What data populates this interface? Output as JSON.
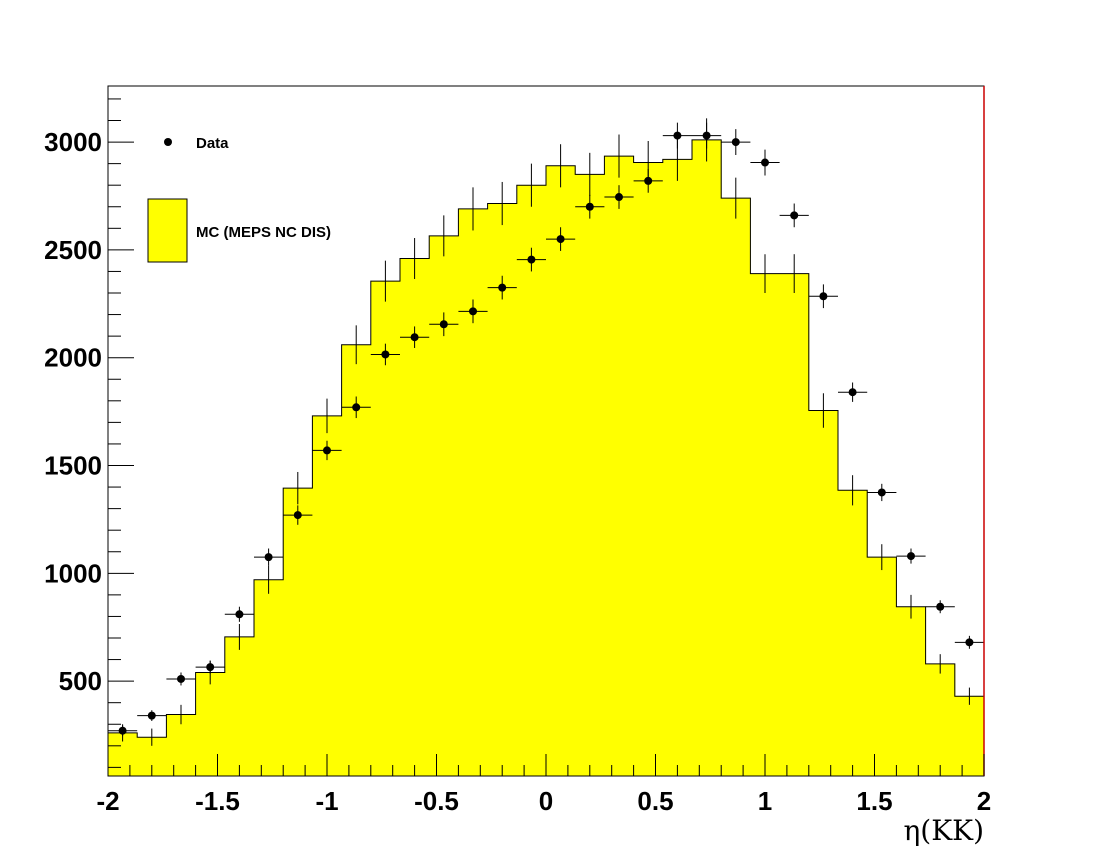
{
  "chart_data": {
    "type": "bar",
    "title": "",
    "xlabel": "η(KK)",
    "ylabel": "",
    "xlim": [
      -2,
      2
    ],
    "ylim": [
      60,
      3260
    ],
    "x_ticks": [
      "-2",
      "-1.5",
      "-1",
      "-0.5",
      "0",
      "0.5",
      "1",
      "1.5",
      "2"
    ],
    "y_ticks": [
      "500",
      "1000",
      "1500",
      "2000",
      "2500",
      "3000"
    ],
    "bin_edges": [
      -2.0,
      -1.8667,
      -1.7333,
      -1.6,
      -1.4667,
      -1.3333,
      -1.2,
      -1.0667,
      -0.9333,
      -0.8,
      -0.6667,
      -0.5333,
      -0.4,
      -0.2667,
      -0.1333,
      0.0,
      0.1333,
      0.2667,
      0.4,
      0.5333,
      0.6667,
      0.8,
      0.9333,
      1.0667,
      1.2,
      1.3333,
      1.4667,
      1.6,
      1.7333,
      1.8667,
      2.0
    ],
    "series": [
      {
        "name": "MC (MEPS NC DIS)",
        "style": "filled-histogram",
        "color": "#ffff00",
        "values": [
          260,
          240,
          345,
          540,
          705,
          970,
          1395,
          1730,
          2060,
          2355,
          2460,
          2565,
          2690,
          2715,
          2800,
          2890,
          2850,
          2935,
          2905,
          2920,
          3010,
          2740,
          2390,
          2390,
          1755,
          1385,
          1075,
          845,
          580,
          430
        ],
        "errors": [
          40,
          40,
          45,
          55,
          60,
          65,
          75,
          80,
          90,
          95,
          95,
          95,
          100,
          100,
          100,
          100,
          100,
          100,
          100,
          100,
          100,
          95,
          90,
          90,
          80,
          70,
          60,
          55,
          45,
          40
        ]
      },
      {
        "name": "Data",
        "style": "points-with-errors",
        "color": "#000000",
        "values": [
          270,
          340,
          510,
          565,
          810,
          1075,
          1270,
          1570,
          1770,
          2015,
          2095,
          2155,
          2215,
          2325,
          2455,
          2550,
          2700,
          2745,
          2820,
          3030,
          3030,
          3000,
          2905,
          2660,
          2285,
          1840,
          1375,
          1080,
          845,
          680
        ],
        "errors": [
          25,
          25,
          30,
          30,
          35,
          40,
          45,
          45,
          50,
          50,
          50,
          55,
          55,
          55,
          55,
          55,
          55,
          55,
          55,
          60,
          60,
          60,
          60,
          55,
          55,
          45,
          40,
          35,
          30,
          30
        ]
      }
    ],
    "grid": false,
    "legend": {
      "placement": "top-left",
      "entries": [
        {
          "label": "Data",
          "marker": "point"
        },
        {
          "label": "MC (MEPS NC DIS)",
          "marker": "filled-box"
        }
      ]
    },
    "colors": {
      "fill": "#ffff00",
      "frame": "#000000",
      "right_edge": "#cc0000"
    }
  }
}
